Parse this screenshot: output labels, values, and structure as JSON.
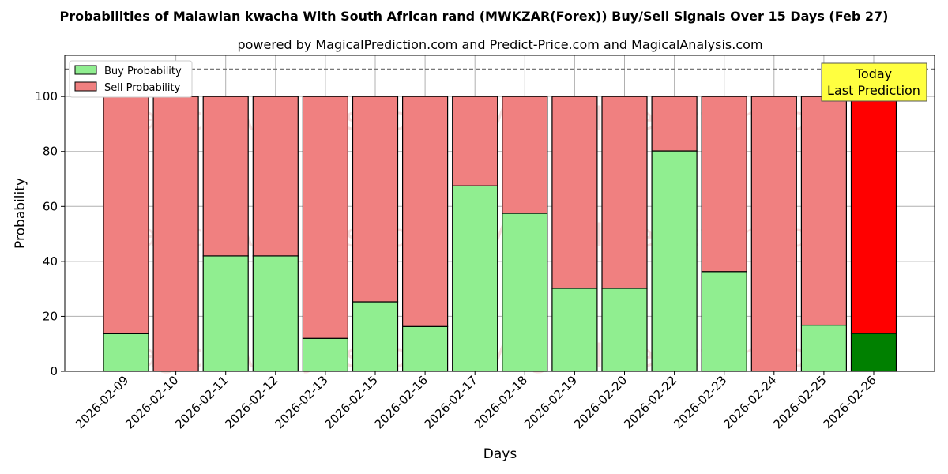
{
  "chart_data": {
    "type": "bar",
    "stacked": true,
    "title": "Probabilities of Malawian kwacha With South African rand (MWKZAR(Forex)) Buy/Sell Signals Over 15 Days (Feb 27)",
    "subtitle": "powered by MagicalPrediction.com and Predict-Price.com and MagicalAnalysis.com",
    "xlabel": "Days",
    "ylabel": "Probability",
    "ylim": [
      0,
      115
    ],
    "yticks": [
      0,
      20,
      40,
      60,
      80,
      100
    ],
    "grid": true,
    "legend_position": "top-left",
    "reference_line": 110,
    "categories": [
      "2026-02-09",
      "2026-02-10",
      "2026-02-11",
      "2026-02-12",
      "2026-02-13",
      "2026-02-15",
      "2026-02-16",
      "2026-02-17",
      "2026-02-18",
      "2026-02-19",
      "2026-02-20",
      "2026-02-22",
      "2026-02-23",
      "2026-02-24",
      "2026-02-25",
      "2026-02-26"
    ],
    "series": [
      {
        "name": "Buy Probability",
        "color": "#90ee90",
        "highlight_color": "#008000",
        "values": [
          13.7,
          0,
          42,
          42,
          12,
          25.3,
          16.3,
          67.5,
          57.5,
          30.2,
          30.2,
          80.2,
          36.3,
          0,
          16.8,
          13.8
        ]
      },
      {
        "name": "Sell Probability",
        "color": "#f08080",
        "highlight_color": "#ff0000",
        "values": [
          86.3,
          100,
          58,
          58,
          88,
          74.7,
          83.7,
          32.5,
          42.5,
          69.8,
          69.8,
          19.8,
          63.7,
          100,
          83.2,
          86.2
        ]
      }
    ],
    "highlight_index": 15,
    "annotation": {
      "line1": "Today",
      "line2": "Last Prediction",
      "color": "#ffff40"
    },
    "watermarks": [
      "MagicalAnalysis.com",
      "MagicalPrediction.com"
    ]
  }
}
